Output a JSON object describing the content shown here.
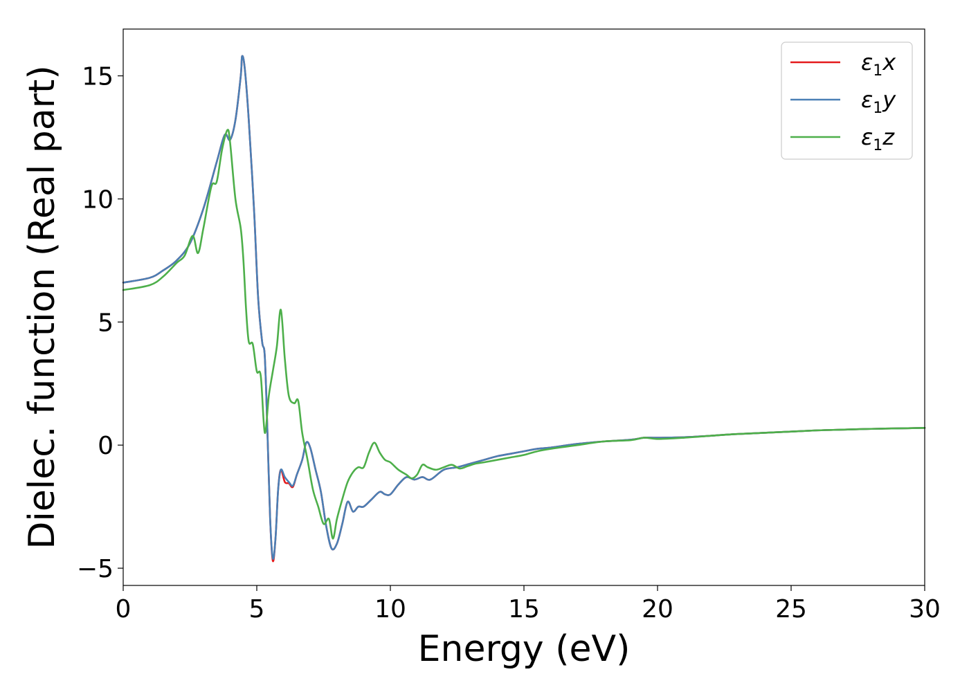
{
  "chart_data": {
    "type": "line",
    "title": "",
    "xlabel": "Energy (eV)",
    "ylabel": "Dielec. function (Real part)",
    "xlim": [
      0,
      30
    ],
    "ylim": [
      -5.7,
      16.9
    ],
    "xticks": [
      0,
      5,
      10,
      15,
      20,
      25,
      30
    ],
    "yticks": [
      -5,
      0,
      5,
      10,
      15
    ],
    "xtick_labels": [
      "0",
      "5",
      "10",
      "15",
      "20",
      "25",
      "30"
    ],
    "ytick_labels": [
      "−5",
      "0",
      "5",
      "10",
      "15"
    ],
    "grid": false,
    "legend_position": "top-right",
    "series": [
      {
        "name": "ε₁x",
        "legend_base": "ε",
        "legend_sub": "1",
        "legend_axis": "x",
        "color": "#e41a1c",
        "points": [
          [
            0,
            6.6
          ],
          [
            1,
            6.8
          ],
          [
            1.5,
            7.1
          ],
          [
            2,
            7.5
          ],
          [
            2.5,
            8.2
          ],
          [
            3,
            9.6
          ],
          [
            3.5,
            11.5
          ],
          [
            3.8,
            12.6
          ],
          [
            4.0,
            12.4
          ],
          [
            4.2,
            13.2
          ],
          [
            4.4,
            15.0
          ],
          [
            4.45,
            15.8
          ],
          [
            4.55,
            15.3
          ],
          [
            4.7,
            13.2
          ],
          [
            4.9,
            9.5
          ],
          [
            5.05,
            6.0
          ],
          [
            5.2,
            4.2
          ],
          [
            5.3,
            3.6
          ],
          [
            5.4,
            0.5
          ],
          [
            5.5,
            -3.0
          ],
          [
            5.6,
            -4.7
          ],
          [
            5.7,
            -3.8
          ],
          [
            5.8,
            -1.8
          ],
          [
            5.9,
            -1.0
          ],
          [
            6.05,
            -1.5
          ],
          [
            6.2,
            -1.55
          ],
          [
            6.35,
            -1.7
          ],
          [
            6.5,
            -1.2
          ],
          [
            6.7,
            -0.6
          ],
          [
            6.85,
            0.1
          ],
          [
            7.0,
            -0.1
          ],
          [
            7.2,
            -1.0
          ],
          [
            7.4,
            -1.9
          ],
          [
            7.6,
            -3.3
          ],
          [
            7.8,
            -4.2
          ],
          [
            8.0,
            -4.0
          ],
          [
            8.2,
            -3.2
          ],
          [
            8.4,
            -2.3
          ],
          [
            8.6,
            -2.7
          ],
          [
            8.8,
            -2.5
          ],
          [
            9.0,
            -2.5
          ],
          [
            9.3,
            -2.2
          ],
          [
            9.6,
            -1.9
          ],
          [
            9.8,
            -2.0
          ],
          [
            10.0,
            -2.0
          ],
          [
            10.3,
            -1.6
          ],
          [
            10.6,
            -1.3
          ],
          [
            10.9,
            -1.4
          ],
          [
            11.2,
            -1.3
          ],
          [
            11.5,
            -1.4
          ],
          [
            12.0,
            -1.0
          ],
          [
            12.5,
            -0.9
          ],
          [
            13.0,
            -0.75
          ],
          [
            13.5,
            -0.6
          ],
          [
            14,
            -0.45
          ],
          [
            14.5,
            -0.35
          ],
          [
            15,
            -0.25
          ],
          [
            15.5,
            -0.15
          ],
          [
            16,
            -0.1
          ],
          [
            17,
            0.05
          ],
          [
            18,
            0.15
          ],
          [
            19,
            0.22
          ],
          [
            19.5,
            0.3
          ],
          [
            20,
            0.3
          ],
          [
            21,
            0.32
          ],
          [
            22,
            0.38
          ],
          [
            22.5,
            0.42
          ],
          [
            23,
            0.45
          ],
          [
            24,
            0.5
          ],
          [
            25,
            0.55
          ],
          [
            26,
            0.6
          ],
          [
            27,
            0.63
          ],
          [
            28,
            0.66
          ],
          [
            29,
            0.68
          ],
          [
            30,
            0.7
          ]
        ]
      },
      {
        "name": "ε₁y",
        "legend_base": "ε",
        "legend_sub": "1",
        "legend_axis": "y",
        "color": "#4a7fb5",
        "points": [
          [
            0,
            6.6
          ],
          [
            1,
            6.8
          ],
          [
            1.5,
            7.1
          ],
          [
            2,
            7.5
          ],
          [
            2.5,
            8.2
          ],
          [
            3,
            9.6
          ],
          [
            3.5,
            11.5
          ],
          [
            3.8,
            12.6
          ],
          [
            4.0,
            12.4
          ],
          [
            4.2,
            13.2
          ],
          [
            4.4,
            15.0
          ],
          [
            4.45,
            15.8
          ],
          [
            4.55,
            15.3
          ],
          [
            4.7,
            13.2
          ],
          [
            4.9,
            9.5
          ],
          [
            5.05,
            6.0
          ],
          [
            5.2,
            4.2
          ],
          [
            5.3,
            3.6
          ],
          [
            5.4,
            0.5
          ],
          [
            5.5,
            -3.0
          ],
          [
            5.6,
            -4.6
          ],
          [
            5.7,
            -3.8
          ],
          [
            5.8,
            -1.8
          ],
          [
            5.9,
            -1.0
          ],
          [
            6.05,
            -1.3
          ],
          [
            6.2,
            -1.5
          ],
          [
            6.35,
            -1.65
          ],
          [
            6.5,
            -1.2
          ],
          [
            6.7,
            -0.6
          ],
          [
            6.85,
            0.1
          ],
          [
            7.0,
            -0.1
          ],
          [
            7.2,
            -1.0
          ],
          [
            7.4,
            -1.9
          ],
          [
            7.6,
            -3.3
          ],
          [
            7.8,
            -4.2
          ],
          [
            8.0,
            -4.0
          ],
          [
            8.2,
            -3.2
          ],
          [
            8.4,
            -2.3
          ],
          [
            8.6,
            -2.7
          ],
          [
            8.8,
            -2.5
          ],
          [
            9.0,
            -2.5
          ],
          [
            9.3,
            -2.2
          ],
          [
            9.6,
            -1.9
          ],
          [
            9.8,
            -2.0
          ],
          [
            10.0,
            -2.0
          ],
          [
            10.3,
            -1.6
          ],
          [
            10.6,
            -1.3
          ],
          [
            10.9,
            -1.4
          ],
          [
            11.2,
            -1.3
          ],
          [
            11.5,
            -1.4
          ],
          [
            12.0,
            -1.0
          ],
          [
            12.5,
            -0.9
          ],
          [
            13.0,
            -0.75
          ],
          [
            13.5,
            -0.6
          ],
          [
            14,
            -0.45
          ],
          [
            14.5,
            -0.35
          ],
          [
            15,
            -0.25
          ],
          [
            15.5,
            -0.15
          ],
          [
            16,
            -0.1
          ],
          [
            17,
            0.05
          ],
          [
            18,
            0.15
          ],
          [
            19,
            0.22
          ],
          [
            19.5,
            0.3
          ],
          [
            20,
            0.3
          ],
          [
            21,
            0.32
          ],
          [
            22,
            0.38
          ],
          [
            22.5,
            0.42
          ],
          [
            23,
            0.45
          ],
          [
            24,
            0.5
          ],
          [
            25,
            0.55
          ],
          [
            26,
            0.6
          ],
          [
            27,
            0.63
          ],
          [
            28,
            0.66
          ],
          [
            29,
            0.68
          ],
          [
            30,
            0.7
          ]
        ]
      },
      {
        "name": "ε₁z",
        "legend_base": "ε",
        "legend_sub": "1",
        "legend_axis": "z",
        "color": "#4daf4a",
        "points": [
          [
            0,
            6.3
          ],
          [
            1,
            6.5
          ],
          [
            1.5,
            6.85
          ],
          [
            2,
            7.4
          ],
          [
            2.3,
            7.7
          ],
          [
            2.6,
            8.5
          ],
          [
            2.8,
            7.8
          ],
          [
            3.0,
            8.8
          ],
          [
            3.3,
            10.5
          ],
          [
            3.5,
            10.7
          ],
          [
            3.7,
            12.0
          ],
          [
            3.9,
            12.8
          ],
          [
            4.0,
            12.3
          ],
          [
            4.2,
            10.0
          ],
          [
            4.4,
            8.8
          ],
          [
            4.5,
            7.5
          ],
          [
            4.6,
            5.5
          ],
          [
            4.7,
            4.2
          ],
          [
            4.85,
            4.1
          ],
          [
            5.0,
            3.0
          ],
          [
            5.15,
            2.8
          ],
          [
            5.3,
            0.5
          ],
          [
            5.45,
            2.0
          ],
          [
            5.6,
            3.0
          ],
          [
            5.75,
            4.0
          ],
          [
            5.9,
            5.5
          ],
          [
            6.05,
            3.5
          ],
          [
            6.2,
            2.0
          ],
          [
            6.4,
            1.7
          ],
          [
            6.55,
            1.8
          ],
          [
            6.7,
            0.5
          ],
          [
            6.9,
            -0.6
          ],
          [
            7.1,
            -1.8
          ],
          [
            7.3,
            -2.5
          ],
          [
            7.5,
            -3.2
          ],
          [
            7.7,
            -3.0
          ],
          [
            7.85,
            -3.8
          ],
          [
            8.0,
            -3.0
          ],
          [
            8.2,
            -2.2
          ],
          [
            8.4,
            -1.5
          ],
          [
            8.6,
            -1.1
          ],
          [
            8.8,
            -0.9
          ],
          [
            9.0,
            -0.9
          ],
          [
            9.2,
            -0.3
          ],
          [
            9.4,
            0.1
          ],
          [
            9.6,
            -0.3
          ],
          [
            9.8,
            -0.6
          ],
          [
            10.0,
            -0.7
          ],
          [
            10.3,
            -1.0
          ],
          [
            10.6,
            -1.2
          ],
          [
            10.8,
            -1.35
          ],
          [
            11.0,
            -1.2
          ],
          [
            11.2,
            -0.8
          ],
          [
            11.4,
            -0.9
          ],
          [
            11.7,
            -1.0
          ],
          [
            12.0,
            -0.9
          ],
          [
            12.3,
            -0.8
          ],
          [
            12.6,
            -0.95
          ],
          [
            12.9,
            -0.85
          ],
          [
            13.2,
            -0.75
          ],
          [
            13.5,
            -0.7
          ],
          [
            14,
            -0.6
          ],
          [
            14.5,
            -0.5
          ],
          [
            15,
            -0.4
          ],
          [
            15.5,
            -0.25
          ],
          [
            16,
            -0.15
          ],
          [
            17,
            0.0
          ],
          [
            18,
            0.15
          ],
          [
            19,
            0.2
          ],
          [
            19.5,
            0.3
          ],
          [
            20,
            0.25
          ],
          [
            21,
            0.3
          ],
          [
            22,
            0.38
          ],
          [
            22.5,
            0.42
          ],
          [
            23,
            0.45
          ],
          [
            24,
            0.5
          ],
          [
            25,
            0.55
          ],
          [
            26,
            0.6
          ],
          [
            27,
            0.63
          ],
          [
            28,
            0.66
          ],
          [
            29,
            0.68
          ],
          [
            30,
            0.7
          ]
        ]
      }
    ]
  }
}
